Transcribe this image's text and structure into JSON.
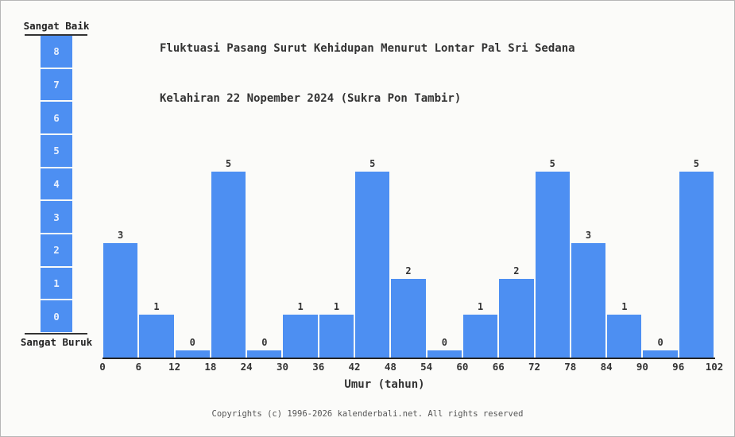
{
  "page": {
    "bg": "#fbfbf9",
    "border_color": "#b6b6b6"
  },
  "title": {
    "line1": "Fluktuasi Pasang Surut Kehidupan Menurut Lontar Pal Sri Sedana",
    "line2": "Kelahiran 22 Nopember 2024 (Sukra Pon Tambir)"
  },
  "scale": {
    "top_label": "Sangat Baik",
    "bottom_label": "Sangat Buruk",
    "levels": [
      "8",
      "7",
      "6",
      "5",
      "4",
      "3",
      "2",
      "1",
      "0"
    ],
    "box_color": "#4d8ff2",
    "number_color": "#e8f0fe"
  },
  "chart_data": {
    "type": "bar",
    "title": "Fluktuasi Pasang Surut Kehidupan Menurut Lontar Pal Sri Sedana Kelahiran 22 Nopember 2024 (Sukra Pon Tambir)",
    "bin_edges": [
      0,
      6,
      12,
      18,
      24,
      30,
      36,
      42,
      48,
      54,
      60,
      66,
      72,
      78,
      84,
      90,
      96,
      102
    ],
    "categories": [
      "0-6",
      "6-12",
      "12-18",
      "18-24",
      "24-30",
      "30-36",
      "36-42",
      "42-48",
      "48-54",
      "54-60",
      "60-66",
      "66-72",
      "72-78",
      "78-84",
      "84-90",
      "90-96",
      "96-102"
    ],
    "values": [
      3,
      1,
      0,
      5,
      0,
      1,
      1,
      5,
      2,
      0,
      1,
      2,
      5,
      3,
      1,
      0,
      5
    ],
    "xlabel": "Umur (tahun)",
    "ylabel": "",
    "ylim": [
      0,
      8
    ],
    "value_labels": true,
    "grid": false,
    "legend": null,
    "bar_color": "#4d8ff2",
    "axis_color": "#222222",
    "text_color": "#333333"
  },
  "footer": {
    "copyright": "Copyrights (c) 1996-2026 kalenderbali.net. All rights reserved"
  }
}
